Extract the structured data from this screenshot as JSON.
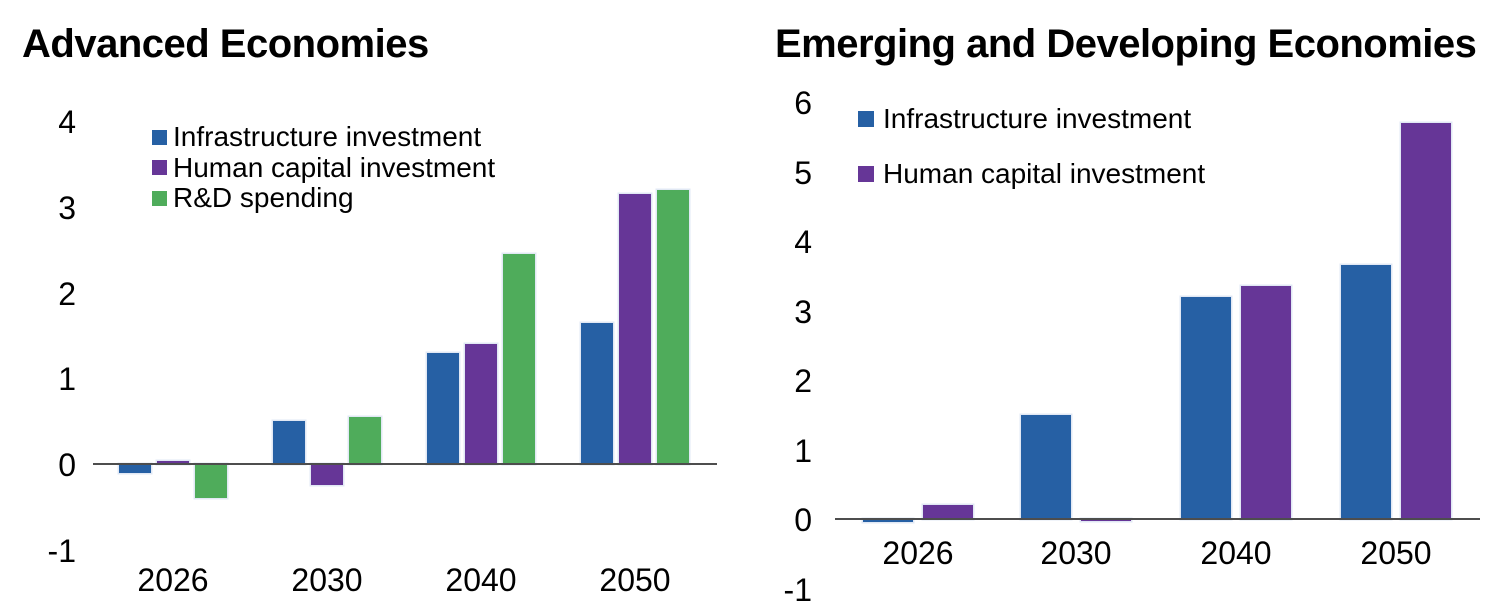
{
  "chart_data": [
    {
      "type": "bar",
      "title": "Advanced Economies",
      "categories": [
        "2026",
        "2030",
        "2040",
        "2050"
      ],
      "series": [
        {
          "name": "Infrastructure investment",
          "color": "#2660A4",
          "values": [
            -0.1,
            0.5,
            1.3,
            1.65
          ]
        },
        {
          "name": "Human capital investment",
          "color": "#663697",
          "values": [
            0.03,
            -0.25,
            1.4,
            3.15
          ]
        },
        {
          "name": "R&D spending",
          "color": "#4FAC5B",
          "values": [
            -0.4,
            0.55,
            2.45,
            3.2
          ]
        }
      ],
      "ylim": [
        -1,
        4
      ],
      "yticks": [
        4,
        3,
        2,
        1,
        0,
        -1
      ],
      "grid": false,
      "legend_position": "top-left-inside",
      "xlabel": "",
      "ylabel": ""
    },
    {
      "type": "bar",
      "title": "Emerging and Developing Economies",
      "categories": [
        "2026",
        "2030",
        "2040",
        "2050"
      ],
      "series": [
        {
          "name": "Infrastructure investment",
          "color": "#2660A4",
          "values": [
            -0.05,
            1.5,
            3.2,
            3.65
          ]
        },
        {
          "name": "Human capital investment",
          "color": "#663697",
          "values": [
            0.2,
            -0.03,
            3.35,
            5.7
          ]
        }
      ],
      "ylim": [
        -1,
        6
      ],
      "yticks": [
        6,
        5,
        4,
        3,
        2,
        1,
        0,
        -1
      ],
      "grid": false,
      "legend_position": "top-left-inside",
      "xlabel": "",
      "ylabel": ""
    }
  ],
  "colors": {
    "infrastructure_investment": "#2660A4",
    "human_capital_investment": "#663697",
    "rnd_spending": "#4FAC5B",
    "axis_line": "#4d4d4d",
    "text": "#000000",
    "background": "#ffffff"
  }
}
